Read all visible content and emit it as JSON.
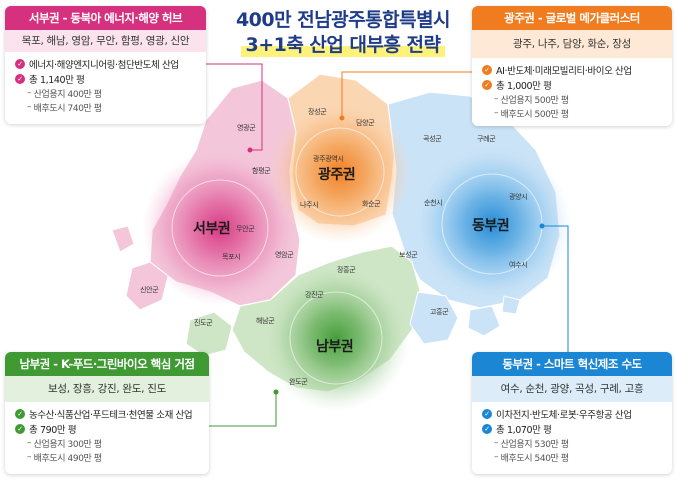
{
  "title": {
    "line1": "400만 전남광주통합특별시",
    "line2": "3+1축 산업 대부흥 전략"
  },
  "colors": {
    "west": "#d6317e",
    "gwangju": "#f07c1f",
    "east": "#1b87d4",
    "south": "#3f9a33"
  },
  "regions": {
    "west": {
      "hub_label": "서부권",
      "header": "서부권 - 동북아 에너지·해양 허브",
      "cities": "목포, 해남, 영암, 무안, 함평, 영광, 신안",
      "industry": "에너지·해양엔지니어링·첨단반도체 산업",
      "total": "총 1,140만 평",
      "sub": [
        "산업용지 400만 평",
        "배후도시 740만 평"
      ]
    },
    "gwangju": {
      "hub_label": "광주권",
      "header": "광주권 - 글로벌 메가클러스터",
      "cities": "광주, 나주, 담양, 화순, 장성",
      "industry": "AI·반도체·미래모빌리티·바이오 산업",
      "total": "총 1,000만 평",
      "sub": [
        "산업용지 500만 평",
        "배후도시 500만 평"
      ]
    },
    "south": {
      "hub_label": "남부권",
      "header": "남부권 - K-푸드·그린바이오 핵심 거점",
      "cities": "보성, 장흥, 강진, 완도, 진도",
      "industry": "농수산·식품산업·푸드테크·천연물 소재 산업",
      "total": "총 790만 평",
      "sub": [
        "산업용지 300만 평",
        "배후도시 490만 평"
      ]
    },
    "east": {
      "hub_label": "동부권",
      "header": "동부권 - 스마트 혁신제조 수도",
      "cities": "여수, 순천, 광양, 곡성, 구례, 고흥",
      "industry": "이차전지·반도체·로봇·우주항공 산업",
      "total": "총 1,070만 평",
      "sub": [
        "산업용지 530만 평",
        "배후도시 540만 평"
      ]
    }
  },
  "map_labels": {
    "yeonggwang": "영광군",
    "jangseong": "장성군",
    "damyang": "담양군",
    "gokseong": "곡성군",
    "gurye": "구례군",
    "hampyeong": "함평군",
    "gwangju_city": "광주광역시",
    "muan": "무안군",
    "naju": "나주시",
    "hwasun": "화순군",
    "suncheon": "순천시",
    "gwangyang": "광양시",
    "mokpo": "목포시",
    "yeongam": "영암군",
    "boseong": "보성군",
    "yeosu": "여수시",
    "sinan": "신안군",
    "jangheung": "장흥군",
    "gangjin": "강진군",
    "haenam": "해남군",
    "goheung": "고흥군",
    "jindo": "진도군",
    "wando": "완도군"
  }
}
